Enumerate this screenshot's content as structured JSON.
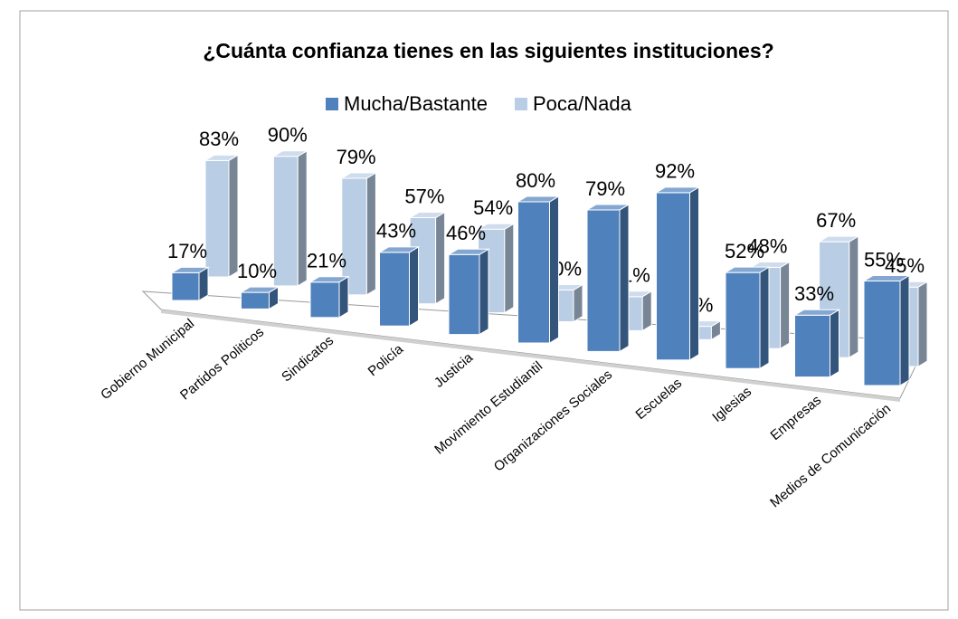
{
  "chart_data": {
    "type": "bar3d",
    "title": "¿Cuánta confianza tienes en las siguientes instituciones?",
    "categories": [
      "Gobierno Municipal",
      "Partidos Politicos",
      "Sindicatos",
      "Policía",
      "Justicia",
      "Movimiento Estudiantil",
      "Organizaciones Sociales",
      "Escuelas",
      "Iglesias",
      "Empresas",
      "Medios de Comunicación"
    ],
    "series": [
      {
        "name": "Mucha/Bastante",
        "color": "#4f81bd",
        "values": [
          17,
          10,
          21,
          43,
          46,
          80,
          79,
          92,
          52,
          33,
          55
        ],
        "value_labels": [
          "17%",
          "10%",
          "21%",
          "43%",
          "46%",
          "80%",
          "79%",
          "92%",
          "52%",
          "33%",
          "55%"
        ]
      },
      {
        "name": "Poca/Nada",
        "color": "#b9cde5",
        "values": [
          83,
          90,
          79,
          57,
          54,
          20,
          21,
          8,
          48,
          67,
          45
        ],
        "value_labels": [
          "83%",
          "90%",
          "79%",
          "57%",
          "54%",
          "20%",
          "21%",
          "8%",
          "48%",
          "67%",
          "45%"
        ]
      }
    ],
    "legend": "top"
  }
}
